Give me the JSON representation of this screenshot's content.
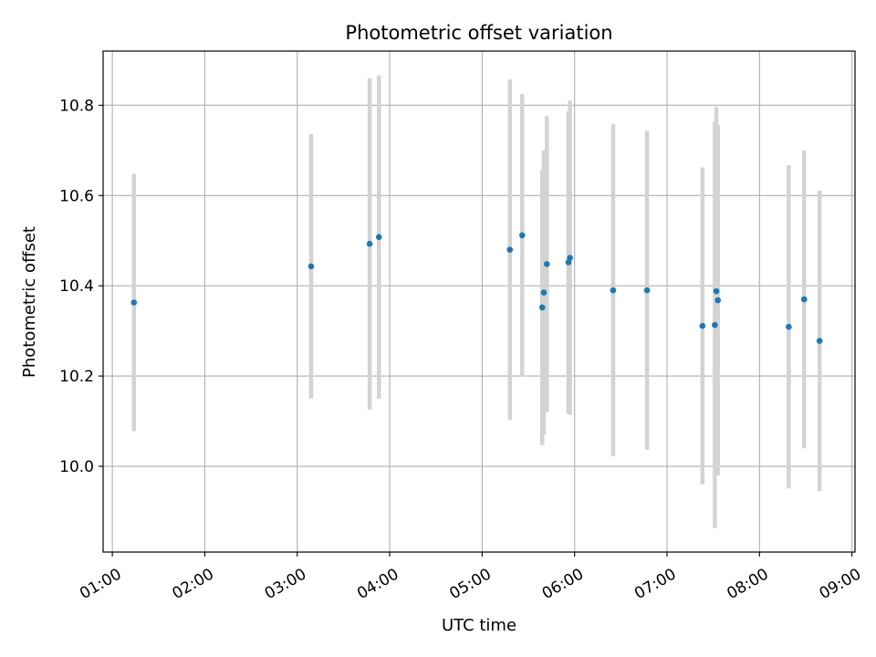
{
  "chart_data": {
    "type": "scatter",
    "title": "Photometric offset variation",
    "xlabel": "UTC time",
    "ylabel": "Photometric offset",
    "x_tick_labels": [
      "01:00",
      "02:00",
      "03:00",
      "04:00",
      "05:00",
      "06:00",
      "07:00",
      "08:00",
      "09:00"
    ],
    "y_tick_labels": [
      "10.0",
      "10.2",
      "10.4",
      "10.6",
      "10.8"
    ],
    "x_ticks": [
      "01:00",
      "02:00",
      "03:00",
      "04:00",
      "05:00",
      "06:00",
      "07:00",
      "08:00",
      "09:00"
    ],
    "y_ticks": [
      10.0,
      10.2,
      10.4,
      10.6,
      10.8
    ],
    "xlim": [
      "00:54",
      "09:02"
    ],
    "ylim": [
      9.81,
      10.92
    ],
    "grid": true,
    "colors": {
      "point": "#1f77b4",
      "errorbar": "#d3d3d3",
      "grid": "#b0b0b0"
    },
    "points": [
      {
        "x": "01:14",
        "y": 10.363,
        "yerr": 0.285
      },
      {
        "x": "03:09",
        "y": 10.443,
        "yerr": 0.293
      },
      {
        "x": "03:47",
        "y": 10.493,
        "yerr": 0.367
      },
      {
        "x": "03:53",
        "y": 10.508,
        "yerr": 0.358
      },
      {
        "x": "05:18",
        "y": 10.48,
        "yerr": 0.377
      },
      {
        "x": "05:26",
        "y": 10.512,
        "yerr": 0.313
      },
      {
        "x": "05:39",
        "y": 10.352,
        "yerr": 0.305
      },
      {
        "x": "05:40",
        "y": 10.385,
        "yerr": 0.315
      },
      {
        "x": "05:42",
        "y": 10.448,
        "yerr": 0.328
      },
      {
        "x": "05:56",
        "y": 10.452,
        "yerr": 0.335
      },
      {
        "x": "05:57",
        "y": 10.462,
        "yerr": 0.348
      },
      {
        "x": "06:25",
        "y": 10.39,
        "yerr": 0.368
      },
      {
        "x": "06:47",
        "y": 10.39,
        "yerr": 0.353
      },
      {
        "x": "07:23",
        "y": 10.311,
        "yerr": 0.351
      },
      {
        "x": "07:31",
        "y": 10.313,
        "yerr": 0.45
      },
      {
        "x": "07:32",
        "y": 10.388,
        "yerr": 0.408
      },
      {
        "x": "07:33",
        "y": 10.368,
        "yerr": 0.388
      },
      {
        "x": "08:19",
        "y": 10.309,
        "yerr": 0.358
      },
      {
        "x": "08:29",
        "y": 10.37,
        "yerr": 0.33
      },
      {
        "x": "08:39",
        "y": 10.278,
        "yerr": 0.333
      }
    ]
  }
}
